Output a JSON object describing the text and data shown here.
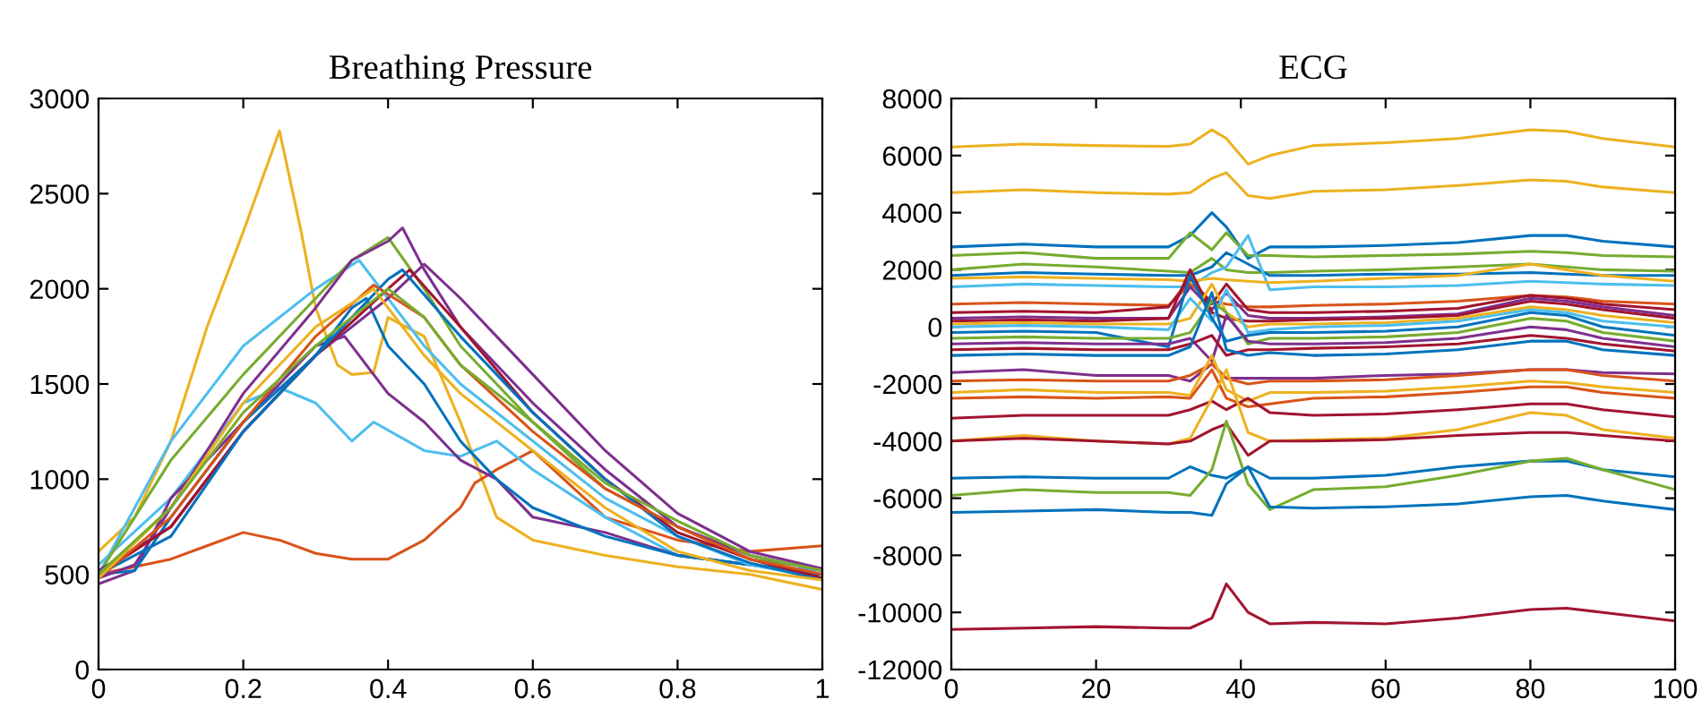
{
  "chart_data": [
    {
      "type": "line",
      "title": "Breathing Pressure",
      "xlim": [
        0,
        1
      ],
      "ylim": [
        0,
        3000
      ],
      "xticks": [
        0,
        0.2,
        0.4,
        0.6,
        0.8,
        1
      ],
      "yticks": [
        0,
        500,
        1000,
        1500,
        2000,
        2500,
        3000
      ],
      "grid": false,
      "line_style": "solid",
      "series": [
        {
          "color": "#EDB120",
          "x": [
            0,
            0.05,
            0.1,
            0.15,
            0.2,
            0.25,
            0.28,
            0.3,
            0.33,
            0.35,
            0.38,
            0.4,
            0.45,
            0.5,
            0.55,
            0.6,
            0.7,
            0.8,
            0.9,
            1
          ],
          "values": [
            620,
            800,
            1200,
            1800,
            2300,
            2830,
            2300,
            1900,
            1600,
            1550,
            1560,
            1850,
            1750,
            1300,
            800,
            680,
            600,
            540,
            500,
            420
          ]
        },
        {
          "color": "#D95319",
          "x": [
            0,
            0.1,
            0.15,
            0.2,
            0.25,
            0.3,
            0.35,
            0.4,
            0.45,
            0.5,
            0.52,
            0.55,
            0.6,
            0.7,
            0.8,
            0.9,
            1
          ],
          "values": [
            500,
            580,
            650,
            720,
            680,
            610,
            580,
            580,
            680,
            850,
            980,
            1050,
            1150,
            800,
            680,
            620,
            650
          ]
        },
        {
          "color": "#4DBEEE",
          "x": [
            0,
            0.1,
            0.2,
            0.25,
            0.3,
            0.35,
            0.38,
            0.45,
            0.5,
            0.55,
            0.6,
            0.7,
            0.8,
            0.9,
            1
          ],
          "values": [
            550,
            900,
            1400,
            1480,
            1400,
            1200,
            1300,
            1150,
            1120,
            1200,
            1050,
            800,
            600,
            550,
            520
          ]
        },
        {
          "color": "#7E2F8E",
          "x": [
            0,
            0.05,
            0.1,
            0.2,
            0.3,
            0.34,
            0.4,
            0.45,
            0.5,
            0.55,
            0.6,
            0.7,
            0.8,
            0.9,
            1
          ],
          "values": [
            450,
            520,
            900,
            1300,
            1700,
            1750,
            1450,
            1300,
            1100,
            1000,
            800,
            720,
            600,
            550,
            500
          ]
        },
        {
          "color": "#0072BD",
          "x": [
            0,
            0.05,
            0.1,
            0.2,
            0.3,
            0.35,
            0.37,
            0.4,
            0.45,
            0.5,
            0.55,
            0.6,
            0.7,
            0.8,
            0.9,
            1
          ],
          "values": [
            500,
            520,
            800,
            1300,
            1650,
            1900,
            1950,
            1700,
            1500,
            1200,
            1000,
            850,
            700,
            600,
            550,
            500
          ]
        },
        {
          "color": "#4DBEEE",
          "x": [
            0,
            0.1,
            0.2,
            0.3,
            0.36,
            0.4,
            0.45,
            0.5,
            0.6,
            0.7,
            0.8,
            0.9,
            1
          ],
          "values": [
            500,
            1200,
            1700,
            2000,
            2150,
            1950,
            1700,
            1500,
            1200,
            900,
            700,
            550,
            480
          ]
        },
        {
          "color": "#77AC30",
          "x": [
            0,
            0.05,
            0.1,
            0.2,
            0.3,
            0.35,
            0.4,
            0.45,
            0.5,
            0.6,
            0.7,
            0.8,
            0.9,
            1
          ],
          "values": [
            500,
            800,
            1100,
            1550,
            1950,
            2150,
            2270,
            2000,
            1700,
            1300,
            950,
            750,
            580,
            530
          ]
        },
        {
          "color": "#7E2F8E",
          "x": [
            0,
            0.05,
            0.1,
            0.2,
            0.3,
            0.35,
            0.4,
            0.42,
            0.45,
            0.5,
            0.6,
            0.7,
            0.8,
            0.9,
            1
          ],
          "values": [
            480,
            550,
            850,
            1450,
            1900,
            2150,
            2250,
            2320,
            2100,
            1800,
            1400,
            1050,
            750,
            600,
            520
          ]
        },
        {
          "color": "#7E2F8E",
          "x": [
            0,
            0.1,
            0.2,
            0.3,
            0.4,
            0.45,
            0.5,
            0.55,
            0.6,
            0.7,
            0.8,
            0.9,
            1
          ],
          "values": [
            520,
            750,
            1250,
            1650,
            1950,
            2130,
            1950,
            1750,
            1550,
            1150,
            820,
            620,
            530
          ]
        },
        {
          "color": "#A2142F",
          "x": [
            0,
            0.1,
            0.2,
            0.3,
            0.4,
            0.43,
            0.5,
            0.6,
            0.7,
            0.8,
            0.9,
            1
          ],
          "values": [
            500,
            750,
            1250,
            1650,
            2000,
            2100,
            1800,
            1350,
            1000,
            720,
            580,
            480
          ]
        },
        {
          "color": "#0072BD",
          "x": [
            0,
            0.1,
            0.2,
            0.3,
            0.4,
            0.42,
            0.5,
            0.6,
            0.7,
            0.8,
            0.9,
            1
          ],
          "values": [
            500,
            700,
            1250,
            1650,
            2050,
            2100,
            1750,
            1350,
            1000,
            700,
            560,
            470
          ]
        },
        {
          "color": "#D95319",
          "x": [
            0,
            0.1,
            0.2,
            0.3,
            0.38,
            0.45,
            0.5,
            0.6,
            0.7,
            0.8,
            0.9,
            1
          ],
          "values": [
            480,
            800,
            1300,
            1750,
            2020,
            1850,
            1600,
            1250,
            950,
            750,
            580,
            500
          ]
        },
        {
          "color": "#EDB120",
          "x": [
            0,
            0.1,
            0.2,
            0.3,
            0.38,
            0.42,
            0.45,
            0.5,
            0.6,
            0.7,
            0.8,
            0.9,
            1
          ],
          "values": [
            480,
            850,
            1400,
            1800,
            2000,
            1800,
            1650,
            1450,
            1150,
            850,
            620,
            520,
            470
          ]
        },
        {
          "color": "#77AC30",
          "x": [
            0,
            0.1,
            0.2,
            0.3,
            0.4,
            0.45,
            0.5,
            0.6,
            0.7,
            0.8,
            0.9,
            1
          ],
          "values": [
            500,
            850,
            1350,
            1700,
            2000,
            1850,
            1600,
            1300,
            980,
            780,
            600,
            520
          ]
        }
      ]
    },
    {
      "type": "line",
      "title": "ECG",
      "xlim": [
        0,
        100
      ],
      "ylim": [
        -12000,
        8000
      ],
      "xticks": [
        0,
        20,
        40,
        60,
        80,
        100
      ],
      "yticks": [
        -12000,
        -10000,
        -8000,
        -6000,
        -4000,
        -2000,
        0,
        2000,
        4000,
        6000,
        8000
      ],
      "grid": false,
      "line_style": "solid",
      "x": [
        0,
        10,
        20,
        30,
        33,
        36,
        38,
        41,
        44,
        50,
        60,
        70,
        80,
        85,
        90,
        100
      ],
      "series": [
        {
          "color": "#EDB120",
          "values": [
            6300,
            6400,
            6350,
            6320,
            6400,
            6900,
            6600,
            5700,
            6000,
            6350,
            6450,
            6600,
            6900,
            6850,
            6600,
            6300
          ]
        },
        {
          "color": "#EDB120",
          "values": [
            4700,
            4800,
            4700,
            4650,
            4700,
            5200,
            5400,
            4600,
            4500,
            4750,
            4800,
            4950,
            5150,
            5100,
            4900,
            4700
          ]
        },
        {
          "color": "#0072BD",
          "values": [
            2800,
            2900,
            2800,
            2800,
            3200,
            4000,
            3500,
            2400,
            2800,
            2800,
            2850,
            2950,
            3200,
            3200,
            3000,
            2800
          ]
        },
        {
          "color": "#77AC30",
          "values": [
            2500,
            2600,
            2400,
            2400,
            3300,
            2700,
            3300,
            2500,
            2500,
            2450,
            2500,
            2550,
            2650,
            2600,
            2500,
            2450
          ]
        },
        {
          "color": "#77AC30",
          "values": [
            2000,
            2200,
            2100,
            1950,
            1900,
            2400,
            2000,
            1900,
            1900,
            1950,
            2000,
            2100,
            2200,
            2100,
            2000,
            1950
          ]
        },
        {
          "color": "#0072BD",
          "values": [
            1800,
            1900,
            1850,
            1800,
            1800,
            2100,
            2600,
            2200,
            1800,
            1800,
            1850,
            1850,
            1900,
            1850,
            1800,
            1800
          ]
        },
        {
          "color": "#4DBEEE",
          "values": [
            1400,
            1500,
            1450,
            1400,
            1400,
            1900,
            2100,
            3200,
            1300,
            1400,
            1400,
            1450,
            1600,
            1550,
            1500,
            1450
          ]
        },
        {
          "color": "#EDB120",
          "values": [
            1700,
            1750,
            1700,
            1650,
            1600,
            1700,
            1650,
            1600,
            1550,
            1600,
            1700,
            1800,
            2200,
            2000,
            1800,
            1600
          ]
        },
        {
          "color": "#D95319",
          "values": [
            800,
            850,
            800,
            750,
            1500,
            900,
            800,
            700,
            700,
            750,
            800,
            900,
            1100,
            1050,
            900,
            800
          ]
        },
        {
          "color": "#A2142F",
          "values": [
            500,
            550,
            500,
            700,
            1700,
            800,
            1500,
            600,
            500,
            500,
            550,
            650,
            1100,
            1000,
            800,
            600
          ]
        },
        {
          "color": "#7E2F8E",
          "values": [
            300,
            350,
            300,
            300,
            1400,
            600,
            1200,
            400,
            300,
            300,
            350,
            450,
            1000,
            900,
            700,
            400
          ]
        },
        {
          "color": "#A2142F",
          "values": [
            200,
            250,
            200,
            300,
            2000,
            500,
            300,
            200,
            200,
            250,
            300,
            400,
            900,
            800,
            600,
            300
          ]
        },
        {
          "color": "#EDB120",
          "values": [
            100,
            150,
            100,
            100,
            300,
            1500,
            500,
            0,
            100,
            100,
            150,
            300,
            700,
            600,
            400,
            150
          ]
        },
        {
          "color": "#4DBEEE",
          "values": [
            0,
            50,
            0,
            -100,
            1000,
            200,
            1300,
            -200,
            -100,
            0,
            50,
            200,
            600,
            500,
            200,
            0
          ]
        },
        {
          "color": "#0072BD",
          "values": [
            -200,
            -150,
            -200,
            -700,
            1800,
            300,
            -500,
            -300,
            -200,
            -200,
            -150,
            0,
            500,
            400,
            0,
            -300
          ]
        },
        {
          "color": "#77AC30",
          "values": [
            -400,
            -350,
            -400,
            -400,
            -200,
            900,
            500,
            -600,
            -400,
            -400,
            -350,
            -200,
            300,
            200,
            -200,
            -500
          ]
        },
        {
          "color": "#7E2F8E",
          "values": [
            -600,
            -550,
            -600,
            -600,
            -400,
            -1200,
            400,
            -500,
            -600,
            -600,
            -550,
            -400,
            0,
            -100,
            -400,
            -700
          ]
        },
        {
          "color": "#A2142F",
          "values": [
            -800,
            -750,
            -800,
            -800,
            -600,
            -300,
            -1000,
            -800,
            -800,
            -750,
            -700,
            -600,
            -300,
            -400,
            -600,
            -850
          ]
        },
        {
          "color": "#0072BD",
          "values": [
            -1000,
            -950,
            -1000,
            -1000,
            -700,
            1200,
            -800,
            -1000,
            -900,
            -1000,
            -950,
            -800,
            -500,
            -500,
            -800,
            -1000
          ]
        },
        {
          "color": "#7E2F8E",
          "values": [
            -1600,
            -1500,
            -1700,
            -1700,
            -1900,
            -1300,
            -1800,
            -1800,
            -1800,
            -1800,
            -1700,
            -1650,
            -1500,
            -1500,
            -1600,
            -1650
          ]
        },
        {
          "color": "#D95319",
          "values": [
            -1900,
            -1850,
            -1900,
            -1900,
            -1700,
            -1300,
            -1800,
            -2000,
            -1900,
            -1900,
            -1850,
            -1700,
            -1500,
            -1500,
            -1700,
            -1900
          ]
        },
        {
          "color": "#EDB120",
          "values": [
            -2300,
            -2200,
            -2300,
            -2300,
            -2400,
            -1000,
            -2200,
            -2600,
            -2300,
            -2300,
            -2250,
            -2100,
            -1900,
            -1950,
            -2100,
            -2300
          ]
        },
        {
          "color": "#D95319",
          "values": [
            -2500,
            -2450,
            -2500,
            -2450,
            -2500,
            -1500,
            -2500,
            -2800,
            -2700,
            -2500,
            -2450,
            -2300,
            -2100,
            -2100,
            -2300,
            -2500
          ]
        },
        {
          "color": "#A2142F",
          "values": [
            -3200,
            -3100,
            -3100,
            -3100,
            -2900,
            -2600,
            -2900,
            -2500,
            -3000,
            -3100,
            -3050,
            -2900,
            -2700,
            -2700,
            -2900,
            -3150
          ]
        },
        {
          "color": "#EDB120",
          "values": [
            -4000,
            -3800,
            -4000,
            -4100,
            -3900,
            -2500,
            -1500,
            -3700,
            -4000,
            -3950,
            -3900,
            -3600,
            -3000,
            -3100,
            -3600,
            -3900
          ]
        },
        {
          "color": "#A2142F",
          "values": [
            -4000,
            -3900,
            -4000,
            -4100,
            -4000,
            -3600,
            -3400,
            -4500,
            -4000,
            -4000,
            -3950,
            -3800,
            -3700,
            -3700,
            -3800,
            -4000
          ]
        },
        {
          "color": "#0072BD",
          "values": [
            -5300,
            -5250,
            -5300,
            -5300,
            -4900,
            -5200,
            -5300,
            -4900,
            -5300,
            -5300,
            -5200,
            -4900,
            -4700,
            -4700,
            -5000,
            -5250
          ]
        },
        {
          "color": "#77AC30",
          "values": [
            -5900,
            -5700,
            -5800,
            -5800,
            -5900,
            -5000,
            -3300,
            -5500,
            -6400,
            -5700,
            -5600,
            -5200,
            -4700,
            -4600,
            -5000,
            -5700
          ]
        },
        {
          "color": "#0072BD",
          "values": [
            -6500,
            -6450,
            -6400,
            -6500,
            -6500,
            -6600,
            -5500,
            -4900,
            -6300,
            -6350,
            -6300,
            -6200,
            -5950,
            -5900,
            -6100,
            -6400
          ]
        },
        {
          "color": "#A2142F",
          "values": [
            -10600,
            -10550,
            -10500,
            -10550,
            -10550,
            -10200,
            -9000,
            -10000,
            -10400,
            -10350,
            -10400,
            -10200,
            -9900,
            -9850,
            -10000,
            -10300
          ]
        }
      ]
    }
  ]
}
